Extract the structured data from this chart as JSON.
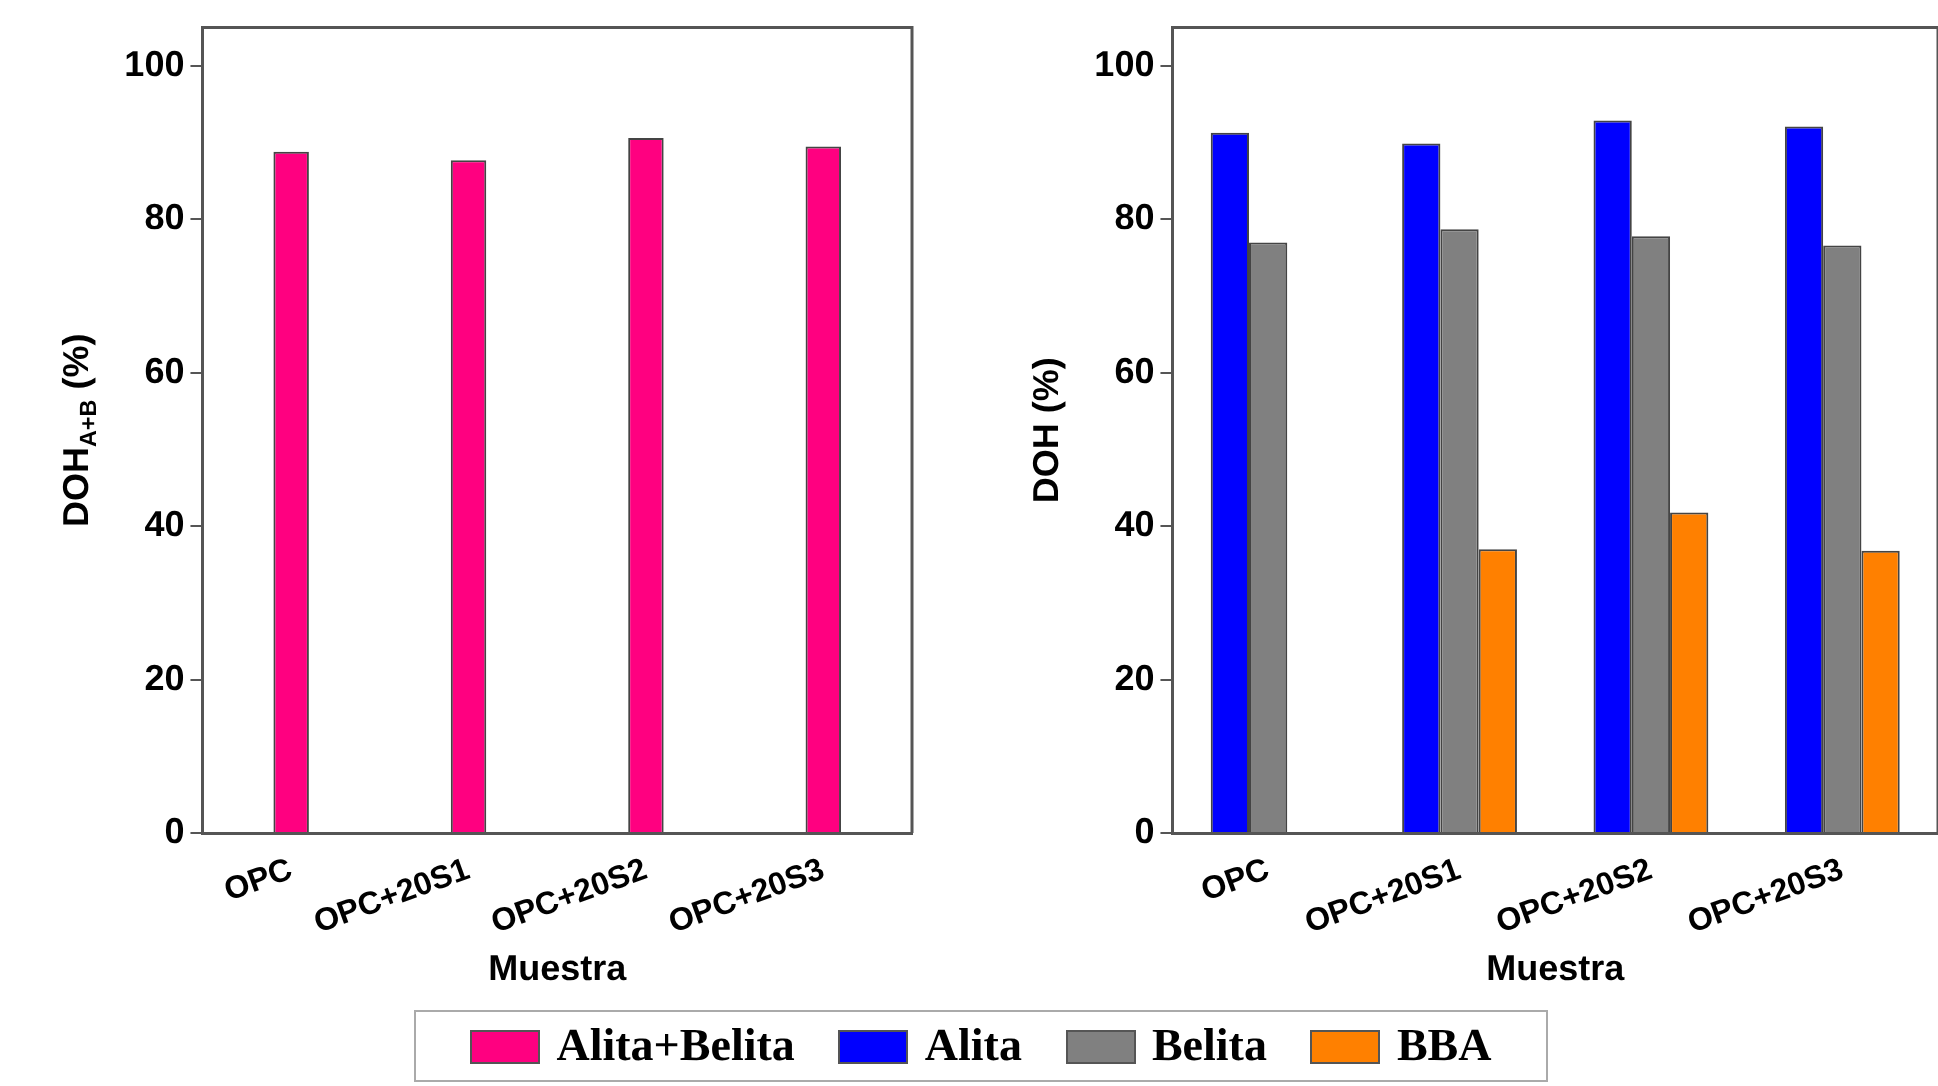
{
  "chart_data": [
    {
      "type": "bar",
      "xlabel": "Muestra",
      "ylabel": "DOH$_{A+B}$ (%)",
      "categories": [
        "OPC",
        "OPC+20S1",
        "OPC+20S2",
        "OPC+20S3"
      ],
      "ylim": [
        0,
        105
      ],
      "yticks": [
        0,
        20,
        40,
        60,
        80,
        100
      ],
      "legend": "bottom",
      "grid": false,
      "series": [
        {
          "name": "Alita+Belita",
          "color": "#ff0080",
          "values": [
            88.8,
            87.7,
            90.6,
            89.5
          ]
        }
      ]
    },
    {
      "type": "bar",
      "xlabel": "Muestra",
      "ylabel": "DOH (%)",
      "categories": [
        "OPC",
        "OPC+20S1",
        "OPC+20S2",
        "OPC+20S3"
      ],
      "ylim": [
        0,
        105
      ],
      "yticks": [
        0,
        20,
        40,
        60,
        80,
        100
      ],
      "legend": "bottom",
      "grid": false,
      "series": [
        {
          "name": "Alita",
          "color": "#0000ff",
          "values": [
            91.3,
            89.9,
            92.9,
            92.1
          ]
        },
        {
          "name": "Belita",
          "color": "#808080",
          "values": [
            77.0,
            78.7,
            77.8,
            76.6
          ]
        },
        {
          "name": "BBA",
          "color": "#ff8000",
          "values": [
            null,
            37.0,
            41.8,
            36.8
          ]
        }
      ]
    }
  ]
}
